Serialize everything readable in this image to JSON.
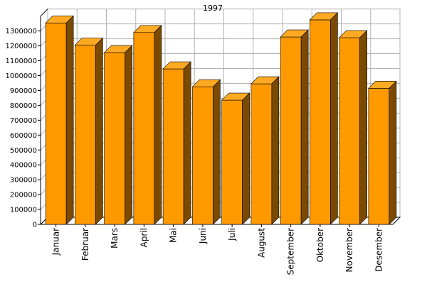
{
  "chart_data": {
    "type": "bar",
    "title": "1997",
    "xlabel": "",
    "ylabel": "",
    "categories": [
      "Januar",
      "Februar",
      "Mars",
      "April",
      "Mai",
      "Juni",
      "Juli",
      "August",
      "September",
      "Oktober",
      "November",
      "Desember"
    ],
    "values": [
      1354000,
      1205000,
      1155000,
      1290000,
      1045000,
      925000,
      835000,
      945000,
      1260000,
      1375000,
      1255000,
      915000
    ],
    "ylim": [
      0,
      1400000
    ],
    "yticks": [
      "0",
      "100000",
      "200000",
      "300000",
      "400000",
      "500000",
      "600000",
      "700000",
      "800000",
      "900000",
      "1000000",
      "1100000",
      "1200000",
      "1300000"
    ],
    "grid": true,
    "legend": "none",
    "colors": {
      "bar_front": "#ff9900",
      "bar_top": "#ffaa22",
      "bar_side": "#7a4a00",
      "background": "#ffffff",
      "gridline": "#b3b3b3",
      "axis": "#000000"
    }
  }
}
